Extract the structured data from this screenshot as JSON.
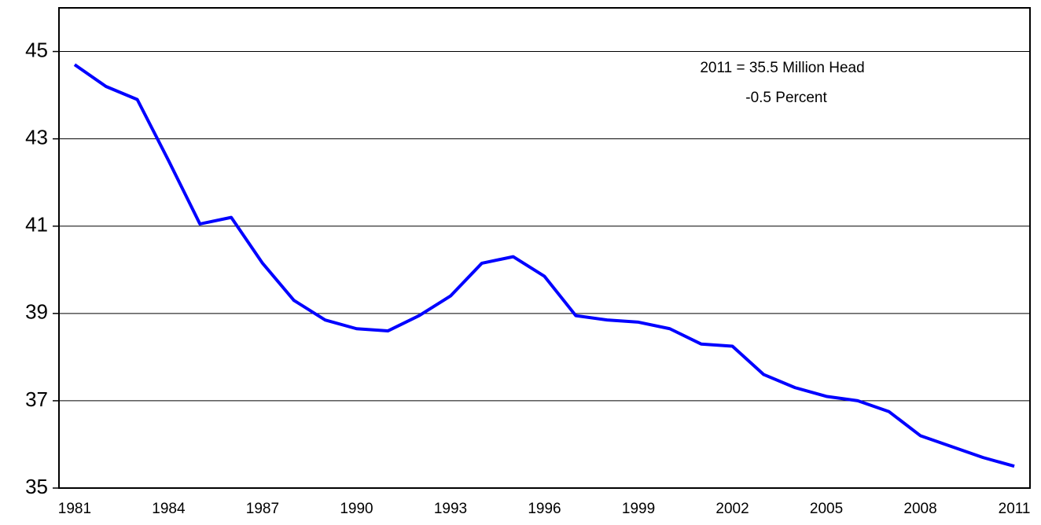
{
  "chart_data": {
    "type": "line",
    "annotations": [
      "2011 = 35.5 Million Head",
      "-0.5 Percent"
    ],
    "x": [
      1981,
      1982,
      1983,
      1984,
      1985,
      1986,
      1987,
      1988,
      1989,
      1990,
      1991,
      1992,
      1993,
      1994,
      1995,
      1996,
      1997,
      1998,
      1999,
      2000,
      2001,
      2002,
      2003,
      2004,
      2005,
      2006,
      2007,
      2008,
      2009,
      2010,
      2011
    ],
    "series": [
      {
        "color": "#0000ff",
        "values": [
          44.7,
          44.2,
          43.9,
          42.5,
          41.05,
          41.2,
          40.15,
          39.3,
          38.85,
          38.65,
          38.6,
          38.95,
          39.4,
          40.15,
          40.3,
          39.85,
          38.95,
          38.85,
          38.8,
          38.65,
          38.3,
          38.25,
          37.6,
          37.3,
          37.1,
          37.0,
          36.75,
          36.2,
          35.95,
          35.7,
          35.5
        ]
      }
    ],
    "xlim": [
      1980.5,
      2011.5
    ],
    "xticks": [
      1981,
      1984,
      1987,
      1990,
      1993,
      1996,
      1999,
      2002,
      2005,
      2008,
      2011
    ],
    "ylim": [
      35,
      46
    ],
    "yticks": [
      35,
      37,
      39,
      41,
      43,
      45
    ],
    "grid": true
  }
}
